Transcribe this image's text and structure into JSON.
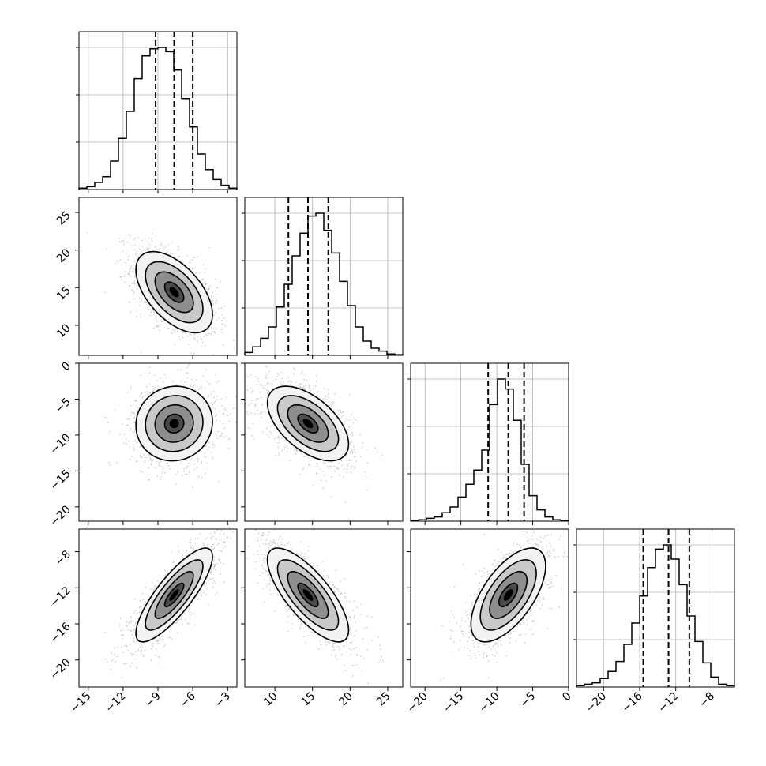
{
  "chart_data": {
    "type": "corner",
    "grid": true,
    "params": [
      {
        "range": [
          -15.8,
          -2.2
        ],
        "quantiles": [
          -9.2,
          -7.6,
          -6.0
        ],
        "ticks": [
          -15,
          -12,
          -9,
          -6,
          -3
        ],
        "tick_labels": [
          "−15",
          "−12",
          "−9",
          "−6",
          "−3"
        ]
      },
      {
        "range": [
          6.0,
          27.0
        ],
        "quantiles": [
          11.8,
          14.4,
          17.1
        ],
        "ticks": [
          10,
          15,
          20,
          25
        ],
        "tick_labels": [
          "10",
          "15",
          "20",
          "25"
        ]
      },
      {
        "range": [
          -22.0,
          0.0
        ],
        "quantiles": [
          -11.2,
          -8.4,
          -6.2
        ],
        "ticks": [
          -20,
          -15,
          -10,
          -5,
          0
        ],
        "tick_labels": [
          "−20",
          "−15",
          "−10",
          "−5",
          "0"
        ]
      },
      {
        "range": [
          -23.0,
          -5.5
        ],
        "quantiles": [
          -15.6,
          -12.8,
          -10.5
        ],
        "ticks": [
          -20,
          -16,
          -12,
          -8
        ],
        "tick_labels": [
          "−20",
          "−16",
          "−12",
          "−8"
        ]
      }
    ],
    "histograms": [
      [
        0.01,
        0.02,
        0.05,
        0.09,
        0.2,
        0.36,
        0.55,
        0.78,
        0.94,
        0.99,
        1.0,
        0.97,
        0.84,
        0.64,
        0.44,
        0.25,
        0.14,
        0.07,
        0.03,
        0.01
      ],
      [
        0.02,
        0.06,
        0.12,
        0.2,
        0.34,
        0.5,
        0.7,
        0.86,
        0.98,
        1.0,
        0.88,
        0.72,
        0.52,
        0.35,
        0.2,
        0.1,
        0.05,
        0.03,
        0.01,
        0.005
      ],
      [
        0.005,
        0.01,
        0.02,
        0.03,
        0.06,
        0.1,
        0.17,
        0.26,
        0.36,
        0.5,
        0.82,
        1.0,
        0.93,
        0.71,
        0.4,
        0.18,
        0.08,
        0.03,
        0.01,
        0.005
      ],
      [
        0.01,
        0.02,
        0.03,
        0.06,
        0.11,
        0.18,
        0.3,
        0.45,
        0.64,
        0.84,
        0.97,
        1.0,
        0.9,
        0.72,
        0.5,
        0.32,
        0.17,
        0.07,
        0.02,
        0.01
      ]
    ],
    "pairs": [
      {
        "x": 0,
        "y": 1,
        "mean": [
          -7.6,
          14.4
        ],
        "sd": [
          1.65,
          2.7
        ],
        "rho": -0.55
      },
      {
        "x": 0,
        "y": 2,
        "mean": [
          -7.6,
          -8.4
        ],
        "sd": [
          1.65,
          2.6
        ],
        "rho": 0.05
      },
      {
        "x": 1,
        "y": 2,
        "mean": [
          14.4,
          -8.4
        ],
        "sd": [
          2.7,
          2.6
        ],
        "rho": -0.55
      },
      {
        "x": 0,
        "y": 3,
        "mean": [
          -7.6,
          -12.8
        ],
        "sd": [
          1.65,
          2.6
        ],
        "rho": 0.82
      },
      {
        "x": 1,
        "y": 3,
        "mean": [
          14.4,
          -12.8
        ],
        "sd": [
          2.7,
          2.6
        ],
        "rho": -0.75
      },
      {
        "x": 2,
        "y": 3,
        "mean": [
          -8.4,
          -12.8
        ],
        "sd": [
          2.6,
          2.6
        ],
        "rho": 0.62
      }
    ],
    "contour_levels_sigma": [
      0.5,
      1.0,
      1.5,
      2.0
    ],
    "colors": {
      "line": "#000000",
      "scatter": "#9a9a9a",
      "grid": "#b0b0b0",
      "fill_dark": "#000000",
      "fill_light": "#ffffff"
    }
  }
}
